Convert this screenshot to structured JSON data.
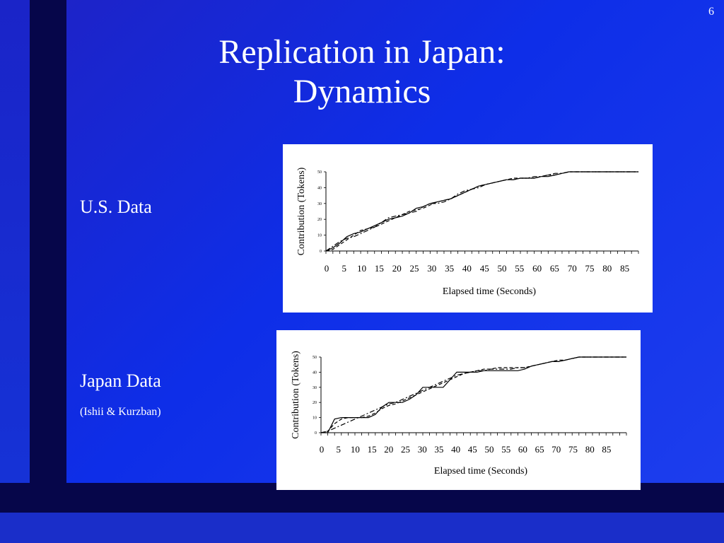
{
  "slide": {
    "number": "6",
    "title_line1": "Replication in Japan:",
    "title_line2": "Dynamics",
    "us_label": "U.S. Data",
    "japan_label": "Japan Data",
    "japan_sublabel": "(Ishii & Kurzban)"
  },
  "chart_data": [
    {
      "type": "line",
      "name": "U.S. Data",
      "ylabel": "Contribution (Tokens)",
      "xlabel": "Elapsed time (Seconds)",
      "xlim": [
        0,
        90
      ],
      "ylim": [
        0,
        50
      ],
      "x_ticks": [
        "0",
        "5",
        "10",
        "15",
        "20",
        "25",
        "30",
        "35",
        "40",
        "45",
        "50",
        "55",
        "60",
        "65",
        "70",
        "75",
        "80",
        "85"
      ],
      "y_ticks": [
        "0",
        "10",
        "20",
        "30",
        "40",
        "50"
      ],
      "series": [
        {
          "style": "solid",
          "x": [
            0,
            2,
            4,
            6,
            8,
            10,
            12,
            14,
            16,
            18,
            20,
            22,
            24,
            26,
            28,
            30,
            32,
            34,
            36,
            38,
            40,
            42,
            44,
            46,
            48,
            50,
            52,
            54,
            56,
            58,
            60,
            62,
            64,
            66,
            68,
            70,
            72,
            74,
            76,
            78,
            80,
            82,
            84,
            86,
            88,
            90
          ],
          "y": [
            0,
            2,
            5,
            9,
            11,
            12,
            14,
            16,
            18,
            20,
            21,
            22,
            24,
            27,
            28,
            30,
            31,
            32,
            33,
            35,
            37,
            39,
            41,
            42,
            43,
            44,
            45,
            45,
            46,
            46,
            46,
            47,
            47,
            48,
            49,
            50,
            50,
            50,
            50,
            50,
            50,
            50,
            50,
            50,
            50,
            50
          ]
        },
        {
          "style": "dashed",
          "x": [
            0,
            2,
            4,
            6,
            8,
            10,
            12,
            14,
            16,
            18,
            20,
            22,
            24,
            26,
            28,
            30,
            32,
            34,
            36,
            38,
            40,
            42,
            44,
            46,
            48,
            50,
            52,
            54,
            56,
            58,
            60,
            62,
            64,
            66,
            68,
            70,
            72,
            74,
            76,
            78,
            80,
            82,
            84,
            86,
            88,
            90
          ],
          "y": [
            0,
            1,
            4,
            7,
            10,
            13,
            14,
            15,
            17,
            19,
            21,
            23,
            25,
            26,
            27,
            29,
            31,
            32,
            33,
            35,
            37,
            39,
            41,
            42,
            43,
            44,
            45,
            46,
            46,
            46,
            46,
            47,
            48,
            48,
            49,
            50,
            50,
            50,
            50,
            50,
            50,
            50,
            50,
            50,
            50,
            50
          ]
        },
        {
          "style": "dashdot",
          "x": [
            0,
            2,
            4,
            6,
            8,
            10,
            12,
            14,
            16,
            18,
            20,
            22,
            24,
            26,
            28,
            30,
            32,
            34,
            36,
            38,
            40,
            42,
            44,
            46,
            48,
            50,
            52,
            54,
            56,
            58,
            60,
            62,
            64,
            66,
            68,
            70,
            72,
            74,
            76,
            78,
            80,
            82,
            84,
            86,
            88,
            90
          ],
          "y": [
            0,
            3,
            6,
            8,
            9,
            11,
            13,
            15,
            18,
            21,
            22,
            23,
            24,
            25,
            28,
            30,
            30,
            31,
            33,
            36,
            38,
            39,
            40,
            42,
            43,
            44,
            45,
            45,
            46,
            46,
            47,
            47,
            48,
            49,
            49,
            50,
            50,
            50,
            50,
            50,
            50,
            50,
            50,
            50,
            50,
            50
          ]
        }
      ]
    },
    {
      "type": "line",
      "name": "Japan Data",
      "ylabel": "Contribution (Tokens)",
      "xlabel": "Elapsed time (Seconds)",
      "xlim": [
        0,
        90
      ],
      "ylim": [
        0,
        50
      ],
      "x_ticks": [
        "0",
        "5",
        "10",
        "15",
        "20",
        "25",
        "30",
        "35",
        "40",
        "45",
        "50",
        "55",
        "60",
        "65",
        "70",
        "75",
        "80",
        "85"
      ],
      "y_ticks": [
        "0",
        "10",
        "20",
        "30",
        "40",
        "50"
      ],
      "series": [
        {
          "style": "solid",
          "x": [
            0,
            2,
            4,
            6,
            8,
            10,
            12,
            14,
            16,
            18,
            20,
            22,
            24,
            26,
            28,
            30,
            32,
            34,
            36,
            38,
            40,
            42,
            44,
            46,
            48,
            50,
            52,
            54,
            56,
            58,
            60,
            62,
            64,
            66,
            68,
            70,
            72,
            74,
            76,
            78,
            80,
            82,
            84,
            86,
            88,
            90
          ],
          "y": [
            0,
            0,
            9,
            10,
            10,
            10,
            10,
            10,
            12,
            17,
            20,
            20,
            20,
            22,
            25,
            30,
            30,
            30,
            30,
            35,
            40,
            40,
            40,
            40,
            41,
            41,
            41,
            41,
            41,
            41,
            42,
            44,
            45,
            46,
            47,
            47,
            48,
            49,
            50,
            50,
            50,
            50,
            50,
            50,
            50,
            50
          ]
        },
        {
          "style": "dashed",
          "x": [
            0,
            2,
            4,
            6,
            8,
            10,
            12,
            14,
            16,
            18,
            20,
            22,
            24,
            26,
            28,
            30,
            32,
            34,
            36,
            38,
            40,
            42,
            44,
            46,
            48,
            50,
            52,
            54,
            56,
            58,
            60,
            62,
            64,
            66,
            68,
            70,
            72,
            74,
            76,
            78,
            80,
            82,
            84,
            86,
            88,
            90
          ],
          "y": [
            0,
            1,
            6,
            9,
            10,
            10,
            10,
            11,
            13,
            16,
            18,
            19,
            21,
            23,
            25,
            27,
            29,
            31,
            33,
            35,
            37,
            39,
            40,
            41,
            42,
            42,
            43,
            43,
            43,
            43,
            43,
            44,
            45,
            46,
            47,
            48,
            48,
            49,
            50,
            50,
            50,
            50,
            50,
            50,
            50,
            50
          ]
        },
        {
          "style": "dashdot",
          "x": [
            0,
            2,
            4,
            6,
            8,
            10,
            12,
            14,
            16,
            18,
            20,
            22,
            24,
            26,
            28,
            30,
            32,
            34,
            36,
            38,
            40,
            42,
            44,
            46,
            48,
            50,
            52,
            54,
            56,
            58,
            60,
            62,
            64,
            66,
            68,
            70,
            72,
            74,
            76,
            78,
            80,
            82,
            84,
            86,
            88,
            90
          ],
          "y": [
            0,
            1,
            3,
            5,
            7,
            9,
            11,
            13,
            15,
            17,
            19,
            20,
            22,
            24,
            26,
            28,
            30,
            32,
            34,
            36,
            38,
            39,
            40,
            41,
            41,
            42,
            42,
            42,
            42,
            43,
            43,
            44,
            45,
            46,
            47,
            47,
            48,
            49,
            50,
            50,
            50,
            50,
            50,
            50,
            50,
            50
          ]
        }
      ]
    }
  ]
}
